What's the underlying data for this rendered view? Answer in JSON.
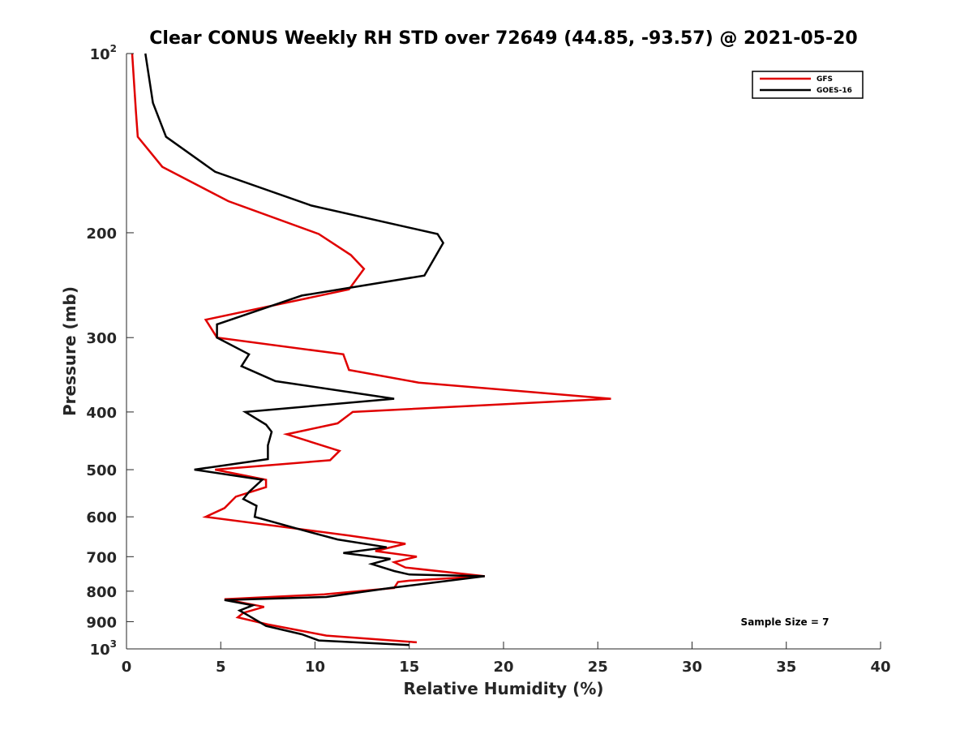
{
  "chart_data": {
    "type": "line",
    "title": "Clear CONUS Weekly RH STD over 72649 (44.85, -93.57) @ 2021-05-20",
    "xlabel": "Relative Humidity (%)",
    "ylabel": "Pressure (mb)",
    "xlim": [
      0,
      40
    ],
    "ylim": [
      100,
      1000
    ],
    "y_scale": "log",
    "y_reversed": true,
    "x_ticks": [
      "0",
      "5",
      "10",
      "15",
      "20",
      "25",
      "30",
      "35",
      "40"
    ],
    "y_ticks": [
      {
        "value": 100,
        "base": "10",
        "exp": "2"
      },
      {
        "value": 200,
        "label": "200"
      },
      {
        "value": 300,
        "label": "300"
      },
      {
        "value": 400,
        "label": "400"
      },
      {
        "value": 500,
        "label": "500"
      },
      {
        "value": 600,
        "label": "600"
      },
      {
        "value": 700,
        "label": "700"
      },
      {
        "value": 800,
        "label": "800"
      },
      {
        "value": 900,
        "label": "900"
      },
      {
        "value": 1000,
        "base": "10",
        "exp": "3"
      }
    ],
    "grid": false,
    "legend_position": "top-right",
    "annotation": "Sample Size = 7",
    "series": [
      {
        "name": "GFS",
        "color": "#e00000",
        "points": [
          [
            0.3,
            100
          ],
          [
            0.5,
            125
          ],
          [
            0.6,
            138
          ],
          [
            1.9,
            155
          ],
          [
            5.4,
            177
          ],
          [
            10.2,
            201
          ],
          [
            11.9,
            218
          ],
          [
            12.6,
            230
          ],
          [
            11.8,
            249
          ],
          [
            4.2,
            280
          ],
          [
            4.8,
            300
          ],
          [
            11.5,
            320
          ],
          [
            11.8,
            340
          ],
          [
            15.5,
            357
          ],
          [
            25.7,
            380
          ],
          [
            12.0,
            400
          ],
          [
            11.2,
            418
          ],
          [
            8.5,
            436
          ],
          [
            11.3,
            465
          ],
          [
            10.8,
            482
          ],
          [
            4.7,
            500
          ],
          [
            7.4,
            520
          ],
          [
            7.4,
            535
          ],
          [
            5.8,
            555
          ],
          [
            5.2,
            580
          ],
          [
            4.2,
            600
          ],
          [
            11.8,
            645
          ],
          [
            14.8,
            666
          ],
          [
            13.2,
            685
          ],
          [
            15.4,
            700
          ],
          [
            14.2,
            715
          ],
          [
            14.8,
            730
          ],
          [
            19.0,
            755
          ],
          [
            15.0,
            768
          ],
          [
            14.4,
            772
          ],
          [
            14.2,
            790
          ],
          [
            10.5,
            810
          ],
          [
            5.2,
            825
          ],
          [
            7.3,
            850
          ],
          [
            6.2,
            870
          ],
          [
            5.9,
            885
          ],
          [
            7.5,
            910
          ],
          [
            10.6,
            950
          ],
          [
            15.4,
            975
          ]
        ]
      },
      {
        "name": "GOES-16",
        "color": "#000000",
        "points": [
          [
            1.0,
            100
          ],
          [
            1.4,
            121
          ],
          [
            2.1,
            138
          ],
          [
            4.7,
            158
          ],
          [
            9.8,
            180
          ],
          [
            16.5,
            201
          ],
          [
            16.8,
            208
          ],
          [
            15.8,
            236
          ],
          [
            9.3,
            255
          ],
          [
            4.8,
            285
          ],
          [
            4.8,
            300
          ],
          [
            6.5,
            320
          ],
          [
            6.1,
            335
          ],
          [
            7.9,
            355
          ],
          [
            14.2,
            380
          ],
          [
            6.3,
            400
          ],
          [
            7.4,
            420
          ],
          [
            7.7,
            432
          ],
          [
            7.5,
            455
          ],
          [
            7.5,
            480
          ],
          [
            3.6,
            500
          ],
          [
            7.2,
            520
          ],
          [
            6.5,
            545
          ],
          [
            6.2,
            560
          ],
          [
            6.9,
            575
          ],
          [
            6.8,
            600
          ],
          [
            9.2,
            630
          ],
          [
            11.2,
            655
          ],
          [
            13.8,
            675
          ],
          [
            11.5,
            690
          ],
          [
            14.0,
            706
          ],
          [
            13.0,
            720
          ],
          [
            14.2,
            740
          ],
          [
            15.0,
            750
          ],
          [
            19.0,
            755
          ],
          [
            14.0,
            790
          ],
          [
            10.6,
            818
          ],
          [
            5.2,
            828
          ],
          [
            6.7,
            845
          ],
          [
            6.0,
            862
          ],
          [
            6.5,
            880
          ],
          [
            7.4,
            915
          ],
          [
            9.3,
            945
          ],
          [
            10.2,
            968
          ],
          [
            15.0,
            985
          ]
        ]
      }
    ]
  }
}
